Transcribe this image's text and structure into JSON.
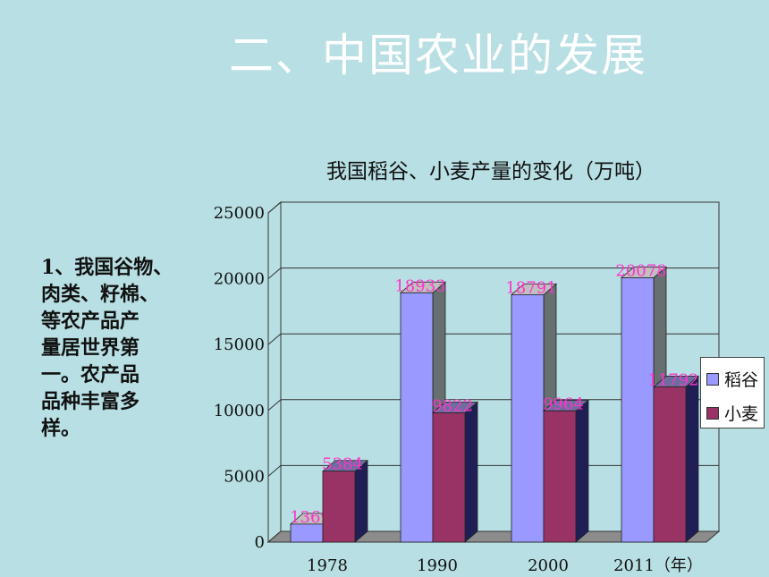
{
  "slide": {
    "title": "二、中国农业的发展",
    "side_text": [
      "1、我国谷物、",
      "肉类、籽棉、",
      "等农产品产",
      "量居世界第",
      "一。农产品",
      "品种丰富多",
      "样。"
    ]
  },
  "colors": {
    "background": "#b8dfe3",
    "rice": "#9999ff",
    "wheat": "#993366",
    "data_label": "#ff33cc"
  },
  "chart_data": {
    "type": "bar",
    "title": "我国稻谷、小麦产量的变化（万吨）",
    "categories": [
      "1978",
      "1990",
      "2000",
      "2011（年）"
    ],
    "series": [
      {
        "name": "稻谷",
        "values": [
          1369,
          18933,
          18791,
          20078
        ]
      },
      {
        "name": "小麦",
        "values": [
          5384,
          9822,
          9964,
          11792
        ]
      }
    ],
    "ylim": [
      0,
      25000
    ],
    "yticks": [
      0,
      5000,
      10000,
      15000,
      20000,
      25000
    ],
    "grid": true,
    "legend_position": "right"
  }
}
